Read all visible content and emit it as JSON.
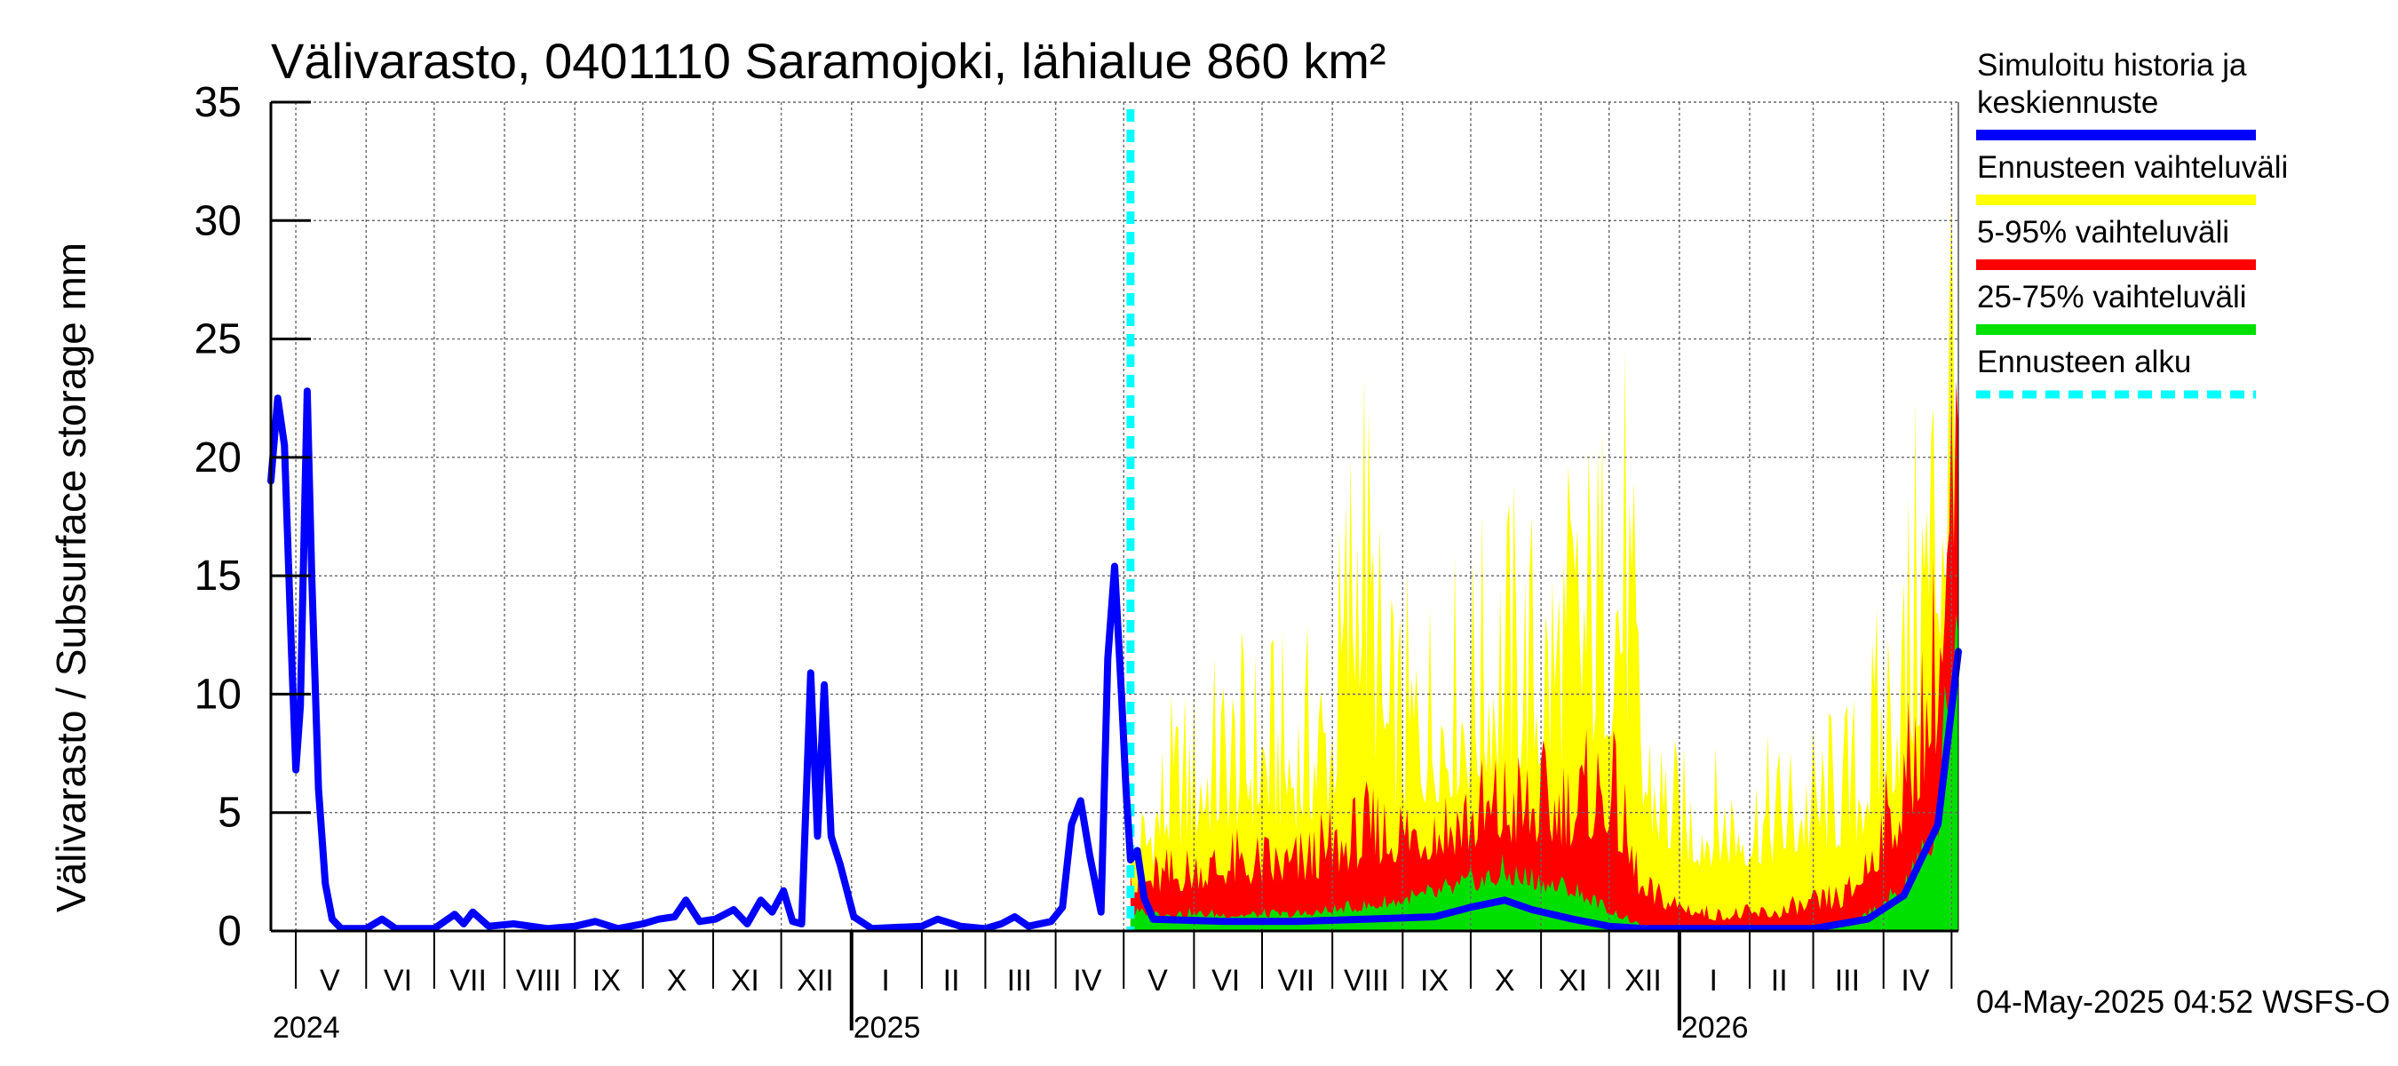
{
  "chart_data": {
    "type": "area",
    "title": "Välivarasto, 0401110 Saramojoki, lähialue 860 km²",
    "ylabel": "Välivarasto / Subsurface storage  mm",
    "ylim": [
      0,
      35
    ],
    "yticks": [
      "0",
      "5",
      "10",
      "15",
      "20",
      "25",
      "30",
      "35"
    ],
    "x_start": "2024-04-20",
    "x_end": "2026-05-04",
    "forecast_start": "2025-05-04",
    "grid": true,
    "legend_position": "right",
    "month_ticks": [
      {
        "label": "V",
        "date": "2024-05-16"
      },
      {
        "label": "VI",
        "date": "2024-06-15"
      },
      {
        "label": "VII",
        "date": "2024-07-16"
      },
      {
        "label": "VIII",
        "date": "2024-08-16"
      },
      {
        "label": "IX",
        "date": "2024-09-15"
      },
      {
        "label": "X",
        "date": "2024-10-16"
      },
      {
        "label": "XI",
        "date": "2024-11-15"
      },
      {
        "label": "XII",
        "date": "2024-12-16"
      },
      {
        "label": "I",
        "date": "2025-01-16"
      },
      {
        "label": "II",
        "date": "2025-02-14"
      },
      {
        "label": "III",
        "date": "2025-03-16"
      },
      {
        "label": "IV",
        "date": "2025-04-15"
      },
      {
        "label": "V",
        "date": "2025-05-16"
      },
      {
        "label": "VI",
        "date": "2025-06-15"
      },
      {
        "label": "VII",
        "date": "2025-07-16"
      },
      {
        "label": "VIII",
        "date": "2025-08-16"
      },
      {
        "label": "IX",
        "date": "2025-09-15"
      },
      {
        "label": "X",
        "date": "2025-10-16"
      },
      {
        "label": "XI",
        "date": "2025-11-15"
      },
      {
        "label": "XII",
        "date": "2025-12-16"
      },
      {
        "label": "I",
        "date": "2026-01-16"
      },
      {
        "label": "II",
        "date": "2026-02-14"
      },
      {
        "label": "III",
        "date": "2026-03-16"
      },
      {
        "label": "IV",
        "date": "2026-04-15"
      }
    ],
    "year_labels": [
      {
        "label": "2024",
        "date": "2024-05-01"
      },
      {
        "label": "2025",
        "date": "2025-01-01"
      },
      {
        "label": "2026",
        "date": "2026-01-01"
      }
    ],
    "colors": {
      "history": "#0000ff",
      "range_full": "#ffff00",
      "range_5_95": "#ff0000",
      "range_25_75": "#00e000",
      "forecast_start": "#00ffff"
    },
    "series": [
      {
        "name": "Simuloitu historia ja keskiennuste",
        "color": "#0000ff",
        "points": [
          [
            "2024-04-20",
            19.0
          ],
          [
            "2024-04-23",
            22.5
          ],
          [
            "2024-04-26",
            20.5
          ],
          [
            "2024-04-29",
            12.0
          ],
          [
            "2024-05-01",
            6.8
          ],
          [
            "2024-05-03",
            9.5
          ],
          [
            "2024-05-06",
            22.8
          ],
          [
            "2024-05-08",
            15.0
          ],
          [
            "2024-05-11",
            6.0
          ],
          [
            "2024-05-14",
            2.0
          ],
          [
            "2024-05-17",
            0.5
          ],
          [
            "2024-05-21",
            0.1
          ],
          [
            "2024-06-01",
            0.1
          ],
          [
            "2024-06-08",
            0.5
          ],
          [
            "2024-06-14",
            0.1
          ],
          [
            "2024-07-01",
            0.1
          ],
          [
            "2024-07-10",
            0.7
          ],
          [
            "2024-07-14",
            0.3
          ],
          [
            "2024-07-18",
            0.8
          ],
          [
            "2024-07-25",
            0.2
          ],
          [
            "2024-08-05",
            0.3
          ],
          [
            "2024-08-20",
            0.1
          ],
          [
            "2024-09-01",
            0.2
          ],
          [
            "2024-09-10",
            0.4
          ],
          [
            "2024-09-20",
            0.1
          ],
          [
            "2024-10-01",
            0.3
          ],
          [
            "2024-10-08",
            0.5
          ],
          [
            "2024-10-15",
            0.6
          ],
          [
            "2024-10-20",
            1.3
          ],
          [
            "2024-10-26",
            0.4
          ],
          [
            "2024-11-02",
            0.5
          ],
          [
            "2024-11-10",
            0.9
          ],
          [
            "2024-11-16",
            0.3
          ],
          [
            "2024-11-22",
            1.3
          ],
          [
            "2024-11-27",
            0.8
          ],
          [
            "2024-12-02",
            1.7
          ],
          [
            "2024-12-06",
            0.4
          ],
          [
            "2024-12-10",
            0.3
          ],
          [
            "2024-12-14",
            10.9
          ],
          [
            "2024-12-17",
            4.0
          ],
          [
            "2024-12-20",
            10.4
          ],
          [
            "2024-12-23",
            4.0
          ],
          [
            "2024-12-27",
            2.8
          ],
          [
            "2025-01-02",
            0.6
          ],
          [
            "2025-01-10",
            0.1
          ],
          [
            "2025-02-01",
            0.2
          ],
          [
            "2025-02-08",
            0.5
          ],
          [
            "2025-02-18",
            0.2
          ],
          [
            "2025-03-01",
            0.1
          ],
          [
            "2025-03-08",
            0.3
          ],
          [
            "2025-03-14",
            0.6
          ],
          [
            "2025-03-20",
            0.2
          ],
          [
            "2025-03-30",
            0.4
          ],
          [
            "2025-04-04",
            1.0
          ],
          [
            "2025-04-08",
            4.5
          ],
          [
            "2025-04-12",
            5.5
          ],
          [
            "2025-04-16",
            3.2
          ],
          [
            "2025-04-21",
            0.8
          ],
          [
            "2025-04-24",
            11.5
          ],
          [
            "2025-04-27",
            15.4
          ],
          [
            "2025-04-30",
            10.0
          ],
          [
            "2025-05-02",
            6.0
          ],
          [
            "2025-05-04",
            3.0
          ],
          [
            "2025-05-07",
            3.4
          ],
          [
            "2025-05-10",
            1.4
          ],
          [
            "2025-05-14",
            0.5
          ],
          [
            "2025-06-15",
            0.4
          ],
          [
            "2025-07-16",
            0.4
          ],
          [
            "2025-08-16",
            0.5
          ],
          [
            "2025-09-15",
            0.6
          ],
          [
            "2025-10-01",
            1.0
          ],
          [
            "2025-10-16",
            1.3
          ],
          [
            "2025-10-28",
            0.9
          ],
          [
            "2025-11-15",
            0.5
          ],
          [
            "2025-12-01",
            0.2
          ],
          [
            "2025-12-16",
            0.1
          ],
          [
            "2026-03-01",
            0.1
          ],
          [
            "2026-03-25",
            0.5
          ],
          [
            "2026-04-10",
            1.5
          ],
          [
            "2026-04-25",
            4.5
          ],
          [
            "2026-05-04",
            11.8
          ]
        ]
      }
    ],
    "bands": [
      {
        "name": "Ennusteen vaihteluväli",
        "color": "#ffff00",
        "points": [
          [
            "2025-05-04",
            0.0,
            3.5
          ],
          [
            "2025-05-20",
            0.0,
            7.5
          ],
          [
            "2025-06-15",
            0.0,
            9.5
          ],
          [
            "2025-07-01",
            0.0,
            10.0
          ],
          [
            "2025-07-16",
            0.0,
            9.5
          ],
          [
            "2025-08-01",
            0.0,
            11.0
          ],
          [
            "2025-08-13",
            0.0,
            22.5
          ],
          [
            "2025-08-25",
            0.0,
            11.0
          ],
          [
            "2025-09-15",
            0.0,
            12.0
          ],
          [
            "2025-10-01",
            0.0,
            13.0
          ],
          [
            "2025-10-16",
            0.0,
            15.0
          ],
          [
            "2025-11-01",
            0.0,
            14.0
          ],
          [
            "2025-11-15",
            0.0,
            16.5
          ],
          [
            "2025-12-01",
            0.0,
            18.0
          ],
          [
            "2025-12-08",
            0.0,
            20.0
          ],
          [
            "2025-12-16",
            0.0,
            9.0
          ],
          [
            "2026-01-01",
            0.0,
            6.0
          ],
          [
            "2026-02-01",
            0.0,
            6.0
          ],
          [
            "2026-03-01",
            0.0,
            7.0
          ],
          [
            "2026-03-20",
            0.0,
            8.0
          ],
          [
            "2026-04-10",
            0.0,
            14.0
          ],
          [
            "2026-04-25",
            0.0,
            24.0
          ],
          [
            "2026-05-04",
            0.0,
            35.0
          ]
        ]
      },
      {
        "name": "5-95% vaihteluväli",
        "color": "#ff0000",
        "points": [
          [
            "2025-05-04",
            0.0,
            2.5
          ],
          [
            "2025-06-15",
            0.0,
            3.5
          ],
          [
            "2025-07-16",
            0.0,
            3.5
          ],
          [
            "2025-08-16",
            0.0,
            5.0
          ],
          [
            "2025-09-15",
            0.0,
            5.5
          ],
          [
            "2025-10-16",
            0.0,
            6.5
          ],
          [
            "2025-11-15",
            0.0,
            6.5
          ],
          [
            "2025-12-01",
            0.0,
            7.5
          ],
          [
            "2025-12-16",
            0.0,
            2.0
          ],
          [
            "2026-01-16",
            0.0,
            0.8
          ],
          [
            "2026-02-14",
            0.0,
            1.0
          ],
          [
            "2026-03-16",
            0.0,
            1.8
          ],
          [
            "2026-04-10",
            0.0,
            7.0
          ],
          [
            "2026-04-25",
            0.0,
            14.0
          ],
          [
            "2026-05-04",
            0.0,
            24.0
          ]
        ]
      },
      {
        "name": "25-75% vaihteluväli",
        "color": "#00e000",
        "points": [
          [
            "2025-05-04",
            0.0,
            0.9
          ],
          [
            "2025-06-15",
            0.0,
            0.8
          ],
          [
            "2025-07-16",
            0.0,
            0.8
          ],
          [
            "2025-08-16",
            0.0,
            1.2
          ],
          [
            "2025-09-15",
            0.0,
            1.8
          ],
          [
            "2025-10-16",
            0.0,
            2.8
          ],
          [
            "2025-11-15",
            0.0,
            2.0
          ],
          [
            "2025-12-01",
            0.0,
            1.0
          ],
          [
            "2025-12-16",
            0.0,
            0.2
          ],
          [
            "2026-03-16",
            0.0,
            0.2
          ],
          [
            "2026-04-10",
            0.0,
            2.0
          ],
          [
            "2026-04-25",
            0.0,
            5.0
          ],
          [
            "2026-05-04",
            0.0,
            18.0
          ]
        ]
      }
    ],
    "legend": [
      {
        "label": "Simuloitu historia ja keskiennuste",
        "lines": [
          "Simuloitu historia ja",
          "keskiennuste"
        ],
        "color": "#0000ff",
        "style": "solid"
      },
      {
        "label": "Ennusteen vaihteluväli",
        "lines": [
          "Ennusteen vaihteluväli"
        ],
        "color": "#ffff00",
        "style": "solid"
      },
      {
        "label": "5-95% vaihteluväli",
        "lines": [
          "5-95% vaihteluväli"
        ],
        "color": "#ff0000",
        "style": "solid"
      },
      {
        "label": "25-75% vaihteluväli",
        "lines": [
          "25-75% vaihteluväli"
        ],
        "color": "#00e000",
        "style": "solid"
      },
      {
        "label": "Ennusteen alku",
        "lines": [
          "Ennusteen alku"
        ],
        "color": "#00ffff",
        "style": "dashed"
      }
    ],
    "footer": "04-May-2025 04:52 WSFS-O"
  }
}
